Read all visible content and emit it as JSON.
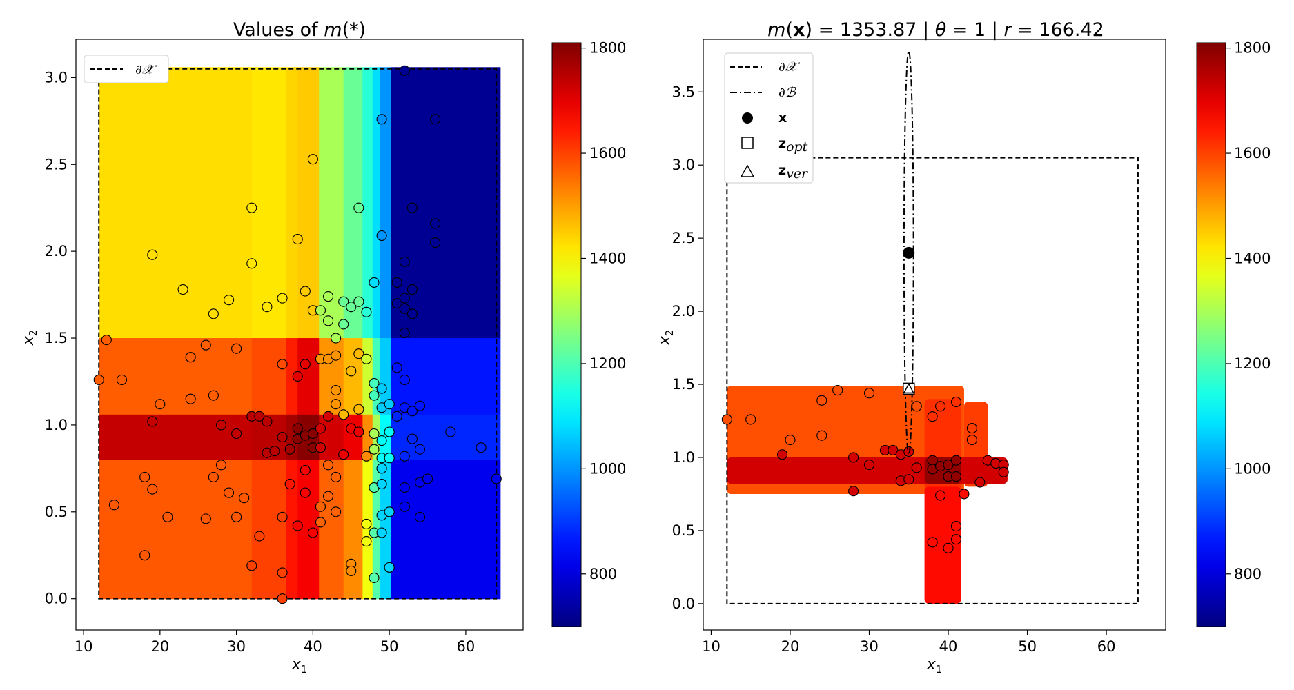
{
  "colors": {
    "scale_min": "#00008f",
    "scale_max": "#7f0000",
    "boundary": "#000000"
  },
  "colorbar": {
    "range": [
      700,
      1810
    ],
    "ticks": [
      800,
      1000,
      1200,
      1400,
      1600,
      1800
    ],
    "tick_labels": [
      "800",
      "1000",
      "1200",
      "1400",
      "1600",
      "1800"
    ]
  },
  "chart_data": [
    {
      "type": "heatmap",
      "title": "Values of m(*)",
      "title_parts": {
        "prefix": "Values of ",
        "func": "m",
        "arg": "(*)"
      },
      "xlabel": "x1",
      "ylabel": "x2",
      "xlim": [
        9,
        67.5
      ],
      "ylim": [
        -0.18,
        3.22
      ],
      "xticks": [
        10,
        20,
        30,
        40,
        50,
        60
      ],
      "yticks": [
        0.0,
        0.5,
        1.0,
        1.5,
        2.0,
        2.5,
        3.0
      ],
      "xtick_labels": [
        "10",
        "20",
        "30",
        "40",
        "50",
        "60"
      ],
      "ytick_labels": [
        "0.0",
        "0.5",
        "1.0",
        "1.5",
        "2.0",
        "2.5",
        "3.0"
      ],
      "domain_boundary": {
        "x": [
          12,
          64
        ],
        "y": [
          0,
          3.05
        ]
      },
      "legend": {
        "position": "top-left",
        "entries": [
          {
            "style": "dashed",
            "label": "∂𝒳"
          }
        ]
      },
      "surface_description": "piecewise-constant value field over x1 bands and x2 bands, colored by m value",
      "x_bands": [
        {
          "x": [
            12,
            32
          ],
          "top": 1430,
          "low": 1570,
          "mid": 1735,
          "bot": 1575
        },
        {
          "x": [
            32,
            36.5
          ],
          "top": 1420,
          "low": 1590,
          "mid": 1745,
          "bot": 1600
        },
        {
          "x": [
            36.5,
            38
          ],
          "top": 1440,
          "low": 1640,
          "mid": 1770,
          "bot": 1650
        },
        {
          "x": [
            38,
            40.8
          ],
          "top": 1450,
          "low": 1700,
          "mid": 1800,
          "bot": 1680
        },
        {
          "x": [
            40.8,
            44
          ],
          "top": 1300,
          "low": 1510,
          "mid": 1720,
          "bot": 1565
        },
        {
          "x": [
            44,
            46.5
          ],
          "top": 1230,
          "low": 1470,
          "mid": 1690,
          "bot": 1520
        },
        {
          "x": [
            46.5,
            47.8
          ],
          "top": 1160,
          "low": 1340,
          "mid": 1520,
          "bot": 1380
        },
        {
          "x": [
            47.8,
            48.8
          ],
          "top": 1080,
          "low": 1190,
          "mid": 1300,
          "bot": 1210
        },
        {
          "x": [
            48.8,
            50.2
          ],
          "top": 1000,
          "low": 1060,
          "mid": 1120,
          "bot": 1070
        },
        {
          "x": [
            50.2,
            64.5
          ],
          "top": 720,
          "low": 860,
          "mid": 880,
          "bot": 820
        }
      ],
      "y_bands": [
        {
          "name": "top",
          "y": [
            1.5,
            3.06
          ]
        },
        {
          "name": "low",
          "y": [
            1.06,
            1.5
          ]
        },
        {
          "name": "mid",
          "y": [
            0.8,
            1.06
          ]
        },
        {
          "name": "bot",
          "y": [
            0,
            0.8
          ]
        }
      ],
      "points": [
        [
          12,
          1.26
        ],
        [
          13,
          1.49
        ],
        [
          14,
          0.54
        ],
        [
          15,
          1.26
        ],
        [
          18,
          0.7
        ],
        [
          18,
          0.25
        ],
        [
          19,
          1.98
        ],
        [
          19,
          1.02
        ],
        [
          19,
          0.63
        ],
        [
          20,
          1.12
        ],
        [
          21,
          0.47
        ],
        [
          23,
          1.78
        ],
        [
          24,
          1.39
        ],
        [
          24,
          1.15
        ],
        [
          26,
          1.46
        ],
        [
          26,
          0.46
        ],
        [
          27,
          1.64
        ],
        [
          27,
          1.17
        ],
        [
          27,
          0.7
        ],
        [
          28,
          1.0
        ],
        [
          28,
          0.77
        ],
        [
          29,
          1.72
        ],
        [
          29,
          0.61
        ],
        [
          30,
          1.44
        ],
        [
          30,
          0.95
        ],
        [
          30,
          0.47
        ],
        [
          31,
          0.58
        ],
        [
          32,
          2.25
        ],
        [
          32,
          1.93
        ],
        [
          32,
          1.05
        ],
        [
          32,
          0.19
        ],
        [
          33,
          1.05
        ],
        [
          33,
          0.36
        ],
        [
          34,
          1.68
        ],
        [
          34,
          1.02
        ],
        [
          34,
          0.84
        ],
        [
          35,
          0.85
        ],
        [
          36,
          1.73
        ],
        [
          36,
          1.35
        ],
        [
          36,
          0.93
        ],
        [
          36,
          0.47
        ],
        [
          36,
          0.15
        ],
        [
          36,
          0.0
        ],
        [
          37,
          0.86
        ],
        [
          37,
          0.66
        ],
        [
          38,
          2.07
        ],
        [
          38,
          1.28
        ],
        [
          38,
          0.98
        ],
        [
          38,
          0.92
        ],
        [
          38,
          0.42
        ],
        [
          39,
          1.77
        ],
        [
          39,
          1.35
        ],
        [
          39,
          0.94
        ],
        [
          39,
          0.74
        ],
        [
          39,
          0.61
        ],
        [
          40,
          2.53
        ],
        [
          40,
          1.66
        ],
        [
          40,
          0.95
        ],
        [
          40,
          0.87
        ],
        [
          40,
          0.38
        ],
        [
          41,
          1.66
        ],
        [
          41,
          1.38
        ],
        [
          41,
          0.98
        ],
        [
          41,
          0.87
        ],
        [
          41,
          0.53
        ],
        [
          41,
          0.44
        ],
        [
          42,
          1.74
        ],
        [
          42,
          1.6
        ],
        [
          42,
          1.38
        ],
        [
          42,
          1.05
        ],
        [
          42,
          0.77
        ],
        [
          42,
          0.59
        ],
        [
          43,
          1.5
        ],
        [
          43,
          1.4
        ],
        [
          43,
          1.2
        ],
        [
          43,
          1.12
        ],
        [
          43,
          0.7
        ],
        [
          43,
          0.5
        ],
        [
          44,
          1.71
        ],
        [
          44,
          1.58
        ],
        [
          44,
          1.06
        ],
        [
          44,
          0.83
        ],
        [
          45,
          1.68
        ],
        [
          45,
          1.31
        ],
        [
          45,
          0.98
        ],
        [
          45,
          0.2
        ],
        [
          45,
          0.16
        ],
        [
          46,
          2.25
        ],
        [
          46,
          1.71
        ],
        [
          46,
          1.41
        ],
        [
          46,
          1.09
        ],
        [
          46,
          0.96
        ],
        [
          47,
          1.65
        ],
        [
          47,
          1.38
        ],
        [
          47,
          0.82
        ],
        [
          47,
          0.43
        ],
        [
          47,
          0.33
        ],
        [
          48,
          1.82
        ],
        [
          48,
          1.24
        ],
        [
          48,
          1.17
        ],
        [
          48,
          0.95
        ],
        [
          48,
          0.86
        ],
        [
          48,
          0.64
        ],
        [
          48,
          0.38
        ],
        [
          48,
          0.12
        ],
        [
          49,
          2.76
        ],
        [
          49,
          2.09
        ],
        [
          49,
          1.21
        ],
        [
          49,
          1.1
        ],
        [
          49,
          0.91
        ],
        [
          49,
          0.81
        ],
        [
          49,
          0.75
        ],
        [
          49,
          0.66
        ],
        [
          49,
          0.48
        ],
        [
          49,
          0.38
        ],
        [
          50,
          1.12
        ],
        [
          50,
          0.96
        ],
        [
          50,
          0.81
        ],
        [
          50,
          0.5
        ],
        [
          50,
          0.18
        ],
        [
          51,
          1.82
        ],
        [
          51,
          1.7
        ],
        [
          51,
          1.33
        ],
        [
          51,
          1.05
        ],
        [
          52,
          3.04
        ],
        [
          52,
          1.94
        ],
        [
          52,
          1.73
        ],
        [
          52,
          1.67
        ],
        [
          52,
          1.53
        ],
        [
          52,
          1.26
        ],
        [
          52,
          1.1
        ],
        [
          52,
          0.82
        ],
        [
          52,
          0.64
        ],
        [
          52,
          0.53
        ],
        [
          53,
          2.25
        ],
        [
          53,
          1.78
        ],
        [
          53,
          1.64
        ],
        [
          53,
          1.08
        ],
        [
          53,
          0.92
        ],
        [
          54,
          1.11
        ],
        [
          54,
          0.86
        ],
        [
          54,
          0.67
        ],
        [
          54,
          0.47
        ],
        [
          55,
          0.69
        ],
        [
          56,
          2.76
        ],
        [
          56,
          2.16
        ],
        [
          56,
          2.05
        ],
        [
          58,
          0.96
        ],
        [
          62,
          0.87
        ],
        [
          64,
          0.69
        ]
      ]
    },
    {
      "type": "heatmap",
      "title": "m(x) = 1353.87 | θ = 1 | r = 166.42",
      "title_parts": {
        "func": "m",
        "lp": "(",
        "var": "x",
        "rp": ")",
        "eq1": " = 1353.87 | ",
        "theta": "θ",
        "eq2": " = 1 | ",
        "r": "r",
        "eq3": " = 166.42"
      },
      "xlabel": "x1",
      "ylabel": "x2",
      "xlim": [
        9,
        67.5
      ],
      "ylim": [
        -0.18,
        3.86
      ],
      "xticks": [
        10,
        20,
        30,
        40,
        50,
        60
      ],
      "yticks": [
        0.0,
        0.5,
        1.0,
        1.5,
        2.0,
        2.5,
        3.0,
        3.5
      ],
      "xtick_labels": [
        "10",
        "20",
        "30",
        "40",
        "50",
        "60"
      ],
      "ytick_labels": [
        "0.0",
        "0.5",
        "1.0",
        "1.5",
        "2.0",
        "2.5",
        "3.0",
        "3.5"
      ],
      "domain_boundary": {
        "x": [
          12,
          64
        ],
        "y": [
          0,
          3.05
        ]
      },
      "ball": {
        "center": [
          35,
          2.4
        ],
        "semi_x": 0.6,
        "semi_y": 1.38
      },
      "x_point": [
        35,
        2.4
      ],
      "z_opt": [
        35,
        1.47
      ],
      "z_ver": [
        35,
        1.47
      ],
      "legend": {
        "position": "top-left",
        "entries": [
          {
            "style": "dashed",
            "label": "∂𝒳"
          },
          {
            "style": "dashdot",
            "label": "∂ℬ"
          },
          {
            "style": "filled-circle",
            "label": "x"
          },
          {
            "style": "square",
            "label": "z",
            "sub": "opt"
          },
          {
            "style": "triangle",
            "label": "z",
            "sub": "ver"
          }
        ]
      },
      "regions": [
        {
          "x": [
            12,
            42
          ],
          "y": [
            0.75,
            1.49
          ],
          "value": 1585
        },
        {
          "x": [
            42,
            45
          ],
          "y": [
            0.8,
            1.38
          ],
          "value": 1605
        },
        {
          "x": [
            37,
            41.6
          ],
          "y": [
            0,
            1.4
          ],
          "value": 1620
        },
        {
          "x": [
            37,
            41.6
          ],
          "y": [
            0,
            0.8
          ],
          "value": 1660
        },
        {
          "x": [
            12,
            47.5
          ],
          "y": [
            0.82,
            1.0
          ],
          "value": 1720
        },
        {
          "x": [
            37,
            41.6
          ],
          "y": [
            0.82,
            1.0
          ],
          "value": 1790
        }
      ],
      "points": [
        [
          12,
          1.26
        ],
        [
          15,
          1.26
        ],
        [
          19,
          1.02
        ],
        [
          20,
          1.12
        ],
        [
          24,
          1.39
        ],
        [
          24,
          1.15
        ],
        [
          26,
          1.46
        ],
        [
          28,
          1.0
        ],
        [
          28,
          0.77
        ],
        [
          30,
          1.44
        ],
        [
          30,
          0.95
        ],
        [
          32,
          1.05
        ],
        [
          33,
          1.05
        ],
        [
          34,
          1.02
        ],
        [
          34,
          0.84
        ],
        [
          35,
          0.85
        ],
        [
          35,
          1.04
        ],
        [
          36,
          1.35
        ],
        [
          36,
          0.93
        ],
        [
          38,
          1.28
        ],
        [
          38,
          0.98
        ],
        [
          38,
          0.92
        ],
        [
          38,
          0.42
        ],
        [
          39,
          1.35
        ],
        [
          39,
          0.94
        ],
        [
          39,
          0.74
        ],
        [
          40,
          0.95
        ],
        [
          40,
          0.87
        ],
        [
          40,
          0.38
        ],
        [
          41,
          1.38
        ],
        [
          41,
          0.98
        ],
        [
          41,
          0.87
        ],
        [
          41,
          0.53
        ],
        [
          41,
          0.44
        ],
        [
          42,
          0.75
        ],
        [
          43,
          1.2
        ],
        [
          43,
          1.12
        ],
        [
          44,
          0.83
        ],
        [
          45,
          0.98
        ],
        [
          46,
          0.96
        ],
        [
          47,
          0.95
        ],
        [
          47,
          0.9
        ]
      ]
    }
  ]
}
